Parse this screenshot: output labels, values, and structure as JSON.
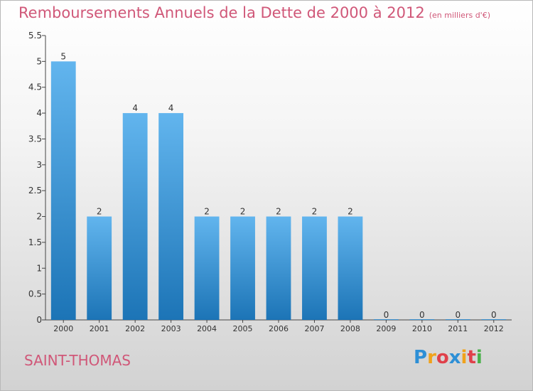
{
  "title": "Remboursements Annuels de la Dette de 2000 à 2012",
  "unit": "(en milliers d'€)",
  "commune": "SAINT-THOMAS",
  "logo": {
    "letters": [
      "P",
      "r",
      "o",
      "x",
      "i",
      "t",
      "i"
    ],
    "colors": [
      "#2d8fd6",
      "#f0a21b",
      "#e0404a",
      "#2d8fd6",
      "#f0a21b",
      "#e0404a",
      "#49b04a"
    ]
  },
  "colors": {
    "bar_light": "#62b5ee",
    "bar_dark": "#1c74b6",
    "title": "#d05778"
  },
  "chart_data": {
    "type": "bar",
    "categories": [
      "2000",
      "2001",
      "2002",
      "2003",
      "2004",
      "2005",
      "2006",
      "2007",
      "2008",
      "2009",
      "2010",
      "2011",
      "2012"
    ],
    "values": [
      5,
      2,
      4,
      4,
      2,
      2,
      2,
      2,
      2,
      0,
      0,
      0,
      0
    ],
    "data_labels": [
      "5",
      "2",
      "4",
      "4",
      "2",
      "2",
      "2",
      "2",
      "2",
      "0",
      "0",
      "0",
      "0"
    ],
    "ylim": [
      0,
      5.5
    ],
    "yticks": [
      "0",
      "0.5",
      "1",
      "1.5",
      "2",
      "2.5",
      "3",
      "3.5",
      "4",
      "4.5",
      "5",
      "5.5"
    ],
    "grid": false
  }
}
